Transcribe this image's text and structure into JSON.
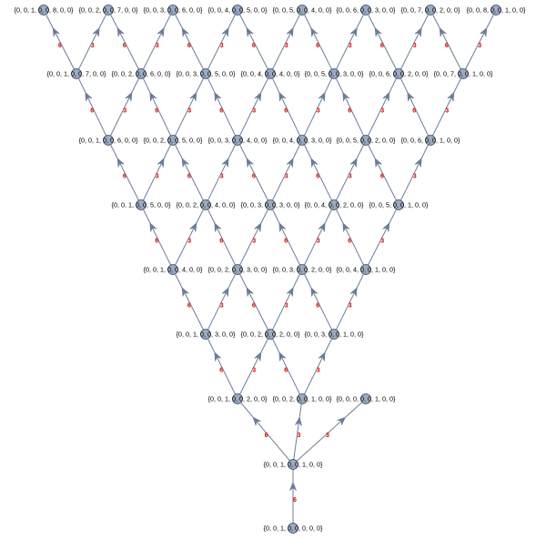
{
  "graph": {
    "layers": [
      {
        "labels": [
          "{0, 0, 1, 0, 0, 8, 0, 0}",
          "{0, 0, 2, 0, 0, 7, 0, 0}",
          "{0, 0, 3, 0, 0, 6, 0, 0}",
          "{0, 0, 4, 0, 0, 5, 0, 0}",
          "{0, 0, 5, 0, 0, 4, 0, 0}",
          "{0, 0, 6, 0, 0, 3, 0, 0}",
          "{0, 0, 7, 0, 0, 2, 0, 0}",
          "{0, 0, 8, 0, 0, 1, 0, 0}"
        ]
      },
      {
        "labels": [
          "{0, 0, 1, 0, 0, 7, 0, 0}",
          "{0, 0, 2, 0, 0, 6, 0, 0}",
          "{0, 0, 3, 0, 0, 5, 0, 0}",
          "{0, 0, 4, 0, 0, 4, 0, 0}",
          "{0, 0, 5, 0, 0, 3, 0, 0}",
          "{0, 0, 6, 0, 0, 2, 0, 0}",
          "{0, 0, 7, 0, 0, 1, 0, 0}"
        ]
      },
      {
        "labels": [
          "{0, 0, 1, 0, 0, 6, 0, 0}",
          "{0, 0, 2, 0, 0, 5, 0, 0}",
          "{0, 0, 3, 0, 0, 4, 0, 0}",
          "{0, 0, 4, 0, 0, 3, 0, 0}",
          "{0, 0, 5, 0, 0, 2, 0, 0}",
          "{0, 0, 6, 0, 0, 1, 0, 0}"
        ]
      },
      {
        "labels": [
          "{0, 0, 1, 0, 0, 5, 0, 0}",
          "{0, 0, 2, 0, 0, 4, 0, 0}",
          "{0, 0, 3, 0, 0, 3, 0, 0}",
          "{0, 0, 4, 0, 0, 2, 0, 0}",
          "{0, 0, 5, 0, 0, 1, 0, 0}"
        ]
      },
      {
        "labels": [
          "{0, 0, 1, 0, 0, 4, 0, 0}",
          "{0, 0, 2, 0, 0, 3, 0, 0}",
          "{0, 0, 3, 0, 0, 2, 0, 0}",
          "{0, 0, 4, 0, 0, 1, 0, 0}"
        ]
      },
      {
        "labels": [
          "{0, 0, 1, 0, 0, 3, 0, 0}",
          "{0, 0, 2, 0, 0, 2, 0, 0}",
          "{0, 0, 3, 0, 0, 1, 0, 0}"
        ]
      },
      {
        "labels": [
          "{0, 0, 1, 0, 0, 2, 0, 0}",
          "{0, 0, 2, 0, 0, 1, 0, 0}",
          "{0, 0, 0, 0, 0, 1, 0, 0}"
        ]
      },
      {
        "labels": [
          "{0, 0, 1, 0, 0, 1, 0, 0}"
        ]
      },
      {
        "labels": [
          "{0, 0, 1, 0, 0, 0, 0, 0}"
        ]
      }
    ],
    "edge_labels": {
      "up_left": "6",
      "up_right": "3"
    },
    "colors": {
      "edge": "#6b7c96",
      "node": "#9aaac2",
      "edge_label": "#e00000"
    }
  }
}
